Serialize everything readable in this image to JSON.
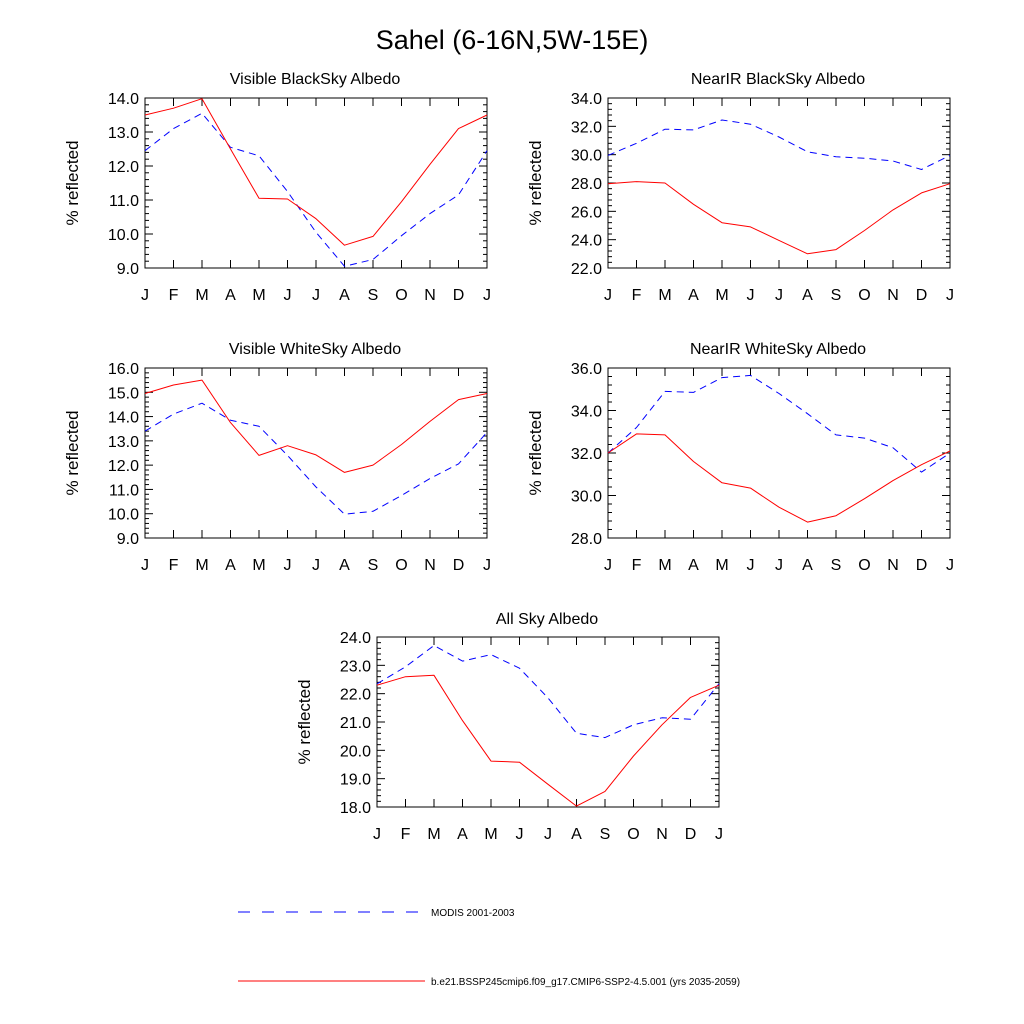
{
  "figure_title": "Sahel (6-16N,5W-15E)",
  "legend": [
    {
      "label": "MODIS 2001-2003",
      "color": "#0000ff",
      "dash": "dashed"
    },
    {
      "label": "b.e21.BSSP245cmip6.f09_g17.CMIP6-SSP2-4.5.001 (yrs 2035-2059)",
      "color": "#ff0000",
      "dash": "solid"
    }
  ],
  "chart_data": [
    {
      "type": "line",
      "title": "Visible BlackSky Albedo",
      "ylabel": "% reflected",
      "xlabel": "",
      "categories": [
        "J",
        "F",
        "M",
        "A",
        "M",
        "J",
        "J",
        "A",
        "S",
        "O",
        "N",
        "D",
        "J"
      ],
      "ylim": [
        9.0,
        14.0
      ],
      "yticks": [
        "9.0",
        "10.0",
        "11.0",
        "12.0",
        "13.0",
        "14.0"
      ],
      "grid": false,
      "series": [
        {
          "name": "MODIS 2001-2003",
          "values": [
            12.45,
            13.1,
            13.55,
            12.55,
            12.3,
            11.25,
            10.05,
            9.05,
            9.25,
            9.95,
            10.6,
            11.15,
            12.45
          ]
        },
        {
          "name": "b.e21.BSSP245cmip6.f09_g17.CMIP6-SSP2-4.5.001 (yrs 2035-2059)",
          "values": [
            13.5,
            13.7,
            13.98,
            12.5,
            11.05,
            11.03,
            10.45,
            9.67,
            9.93,
            10.95,
            12.05,
            13.1,
            13.5
          ]
        }
      ]
    },
    {
      "type": "line",
      "title": "NearIR BlackSky Albedo",
      "ylabel": "% reflected",
      "xlabel": "",
      "categories": [
        "J",
        "F",
        "M",
        "A",
        "M",
        "J",
        "J",
        "A",
        "S",
        "O",
        "N",
        "D",
        "J"
      ],
      "ylim": [
        22.0,
        34.0
      ],
      "yticks": [
        "22.0",
        "24.0",
        "26.0",
        "28.0",
        "30.0",
        "32.0",
        "34.0"
      ],
      "grid": false,
      "series": [
        {
          "name": "MODIS 2001-2003",
          "values": [
            29.95,
            30.8,
            31.8,
            31.75,
            32.45,
            32.15,
            31.25,
            30.2,
            29.85,
            29.75,
            29.55,
            28.95,
            29.95
          ]
        },
        {
          "name": "b.e21.BSSP245cmip6.f09_g17.CMIP6-SSP2-4.5.001 (yrs 2035-2059)",
          "values": [
            27.95,
            28.1,
            28.0,
            26.5,
            25.2,
            24.9,
            23.95,
            23.0,
            23.3,
            24.65,
            26.1,
            27.3,
            27.95
          ]
        }
      ]
    },
    {
      "type": "line",
      "title": "Visible WhiteSky Albedo",
      "ylabel": "% reflected",
      "xlabel": "",
      "categories": [
        "J",
        "F",
        "M",
        "A",
        "M",
        "J",
        "J",
        "A",
        "S",
        "O",
        "N",
        "D",
        "J"
      ],
      "ylim": [
        9.0,
        16.0
      ],
      "yticks": [
        "9.0",
        "10.0",
        "11.0",
        "12.0",
        "13.0",
        "14.0",
        "15.0",
        "16.0"
      ],
      "grid": false,
      "series": [
        {
          "name": "MODIS 2001-2003",
          "values": [
            13.4,
            14.1,
            14.55,
            13.85,
            13.6,
            12.4,
            11.1,
            9.98,
            10.1,
            10.75,
            11.45,
            12.05,
            13.35
          ]
        },
        {
          "name": "b.e21.BSSP245cmip6.f09_g17.CMIP6-SSP2-4.5.001 (yrs 2035-2059)",
          "values": [
            14.95,
            15.3,
            15.5,
            13.75,
            12.4,
            12.8,
            12.42,
            11.7,
            12.0,
            12.85,
            13.8,
            14.7,
            14.95
          ]
        }
      ]
    },
    {
      "type": "line",
      "title": "NearIR WhiteSky Albedo",
      "ylabel": "% reflected",
      "xlabel": "",
      "categories": [
        "J",
        "F",
        "M",
        "A",
        "M",
        "J",
        "J",
        "A",
        "S",
        "O",
        "N",
        "D",
        "J"
      ],
      "ylim": [
        28.0,
        36.0
      ],
      "yticks": [
        "28.0",
        "30.0",
        "32.0",
        "34.0",
        "36.0"
      ],
      "grid": false,
      "series": [
        {
          "name": "MODIS 2001-2003",
          "values": [
            32.0,
            33.2,
            34.9,
            34.85,
            35.55,
            35.65,
            34.8,
            33.85,
            32.85,
            32.7,
            32.25,
            31.1,
            32.0
          ]
        },
        {
          "name": "b.e21.BSSP245cmip6.f09_g17.CMIP6-SSP2-4.5.001 (yrs 2035-2059)",
          "values": [
            32.0,
            32.9,
            32.85,
            31.6,
            30.6,
            30.35,
            29.45,
            28.75,
            29.05,
            29.85,
            30.7,
            31.45,
            32.1
          ]
        }
      ]
    },
    {
      "type": "line",
      "title": "All Sky Albedo",
      "ylabel": "% reflected",
      "xlabel": "",
      "categories": [
        "J",
        "F",
        "M",
        "A",
        "M",
        "J",
        "J",
        "A",
        "S",
        "O",
        "N",
        "D",
        "J"
      ],
      "ylim": [
        18.0,
        24.0
      ],
      "yticks": [
        "18.0",
        "19.0",
        "20.0",
        "21.0",
        "22.0",
        "23.0",
        "24.0"
      ],
      "grid": false,
      "series": [
        {
          "name": "MODIS 2001-2003",
          "values": [
            22.35,
            22.95,
            23.7,
            23.15,
            23.38,
            22.9,
            21.85,
            20.6,
            20.45,
            20.9,
            21.15,
            21.1,
            22.35
          ]
        },
        {
          "name": "b.e21.BSSP245cmip6.f09_g17.CMIP6-SSP2-4.5.001 (yrs 2035-2059)",
          "values": [
            22.3,
            22.6,
            22.65,
            21.05,
            19.62,
            19.58,
            18.8,
            18.03,
            18.55,
            19.8,
            20.9,
            21.87,
            22.3
          ]
        }
      ]
    }
  ]
}
